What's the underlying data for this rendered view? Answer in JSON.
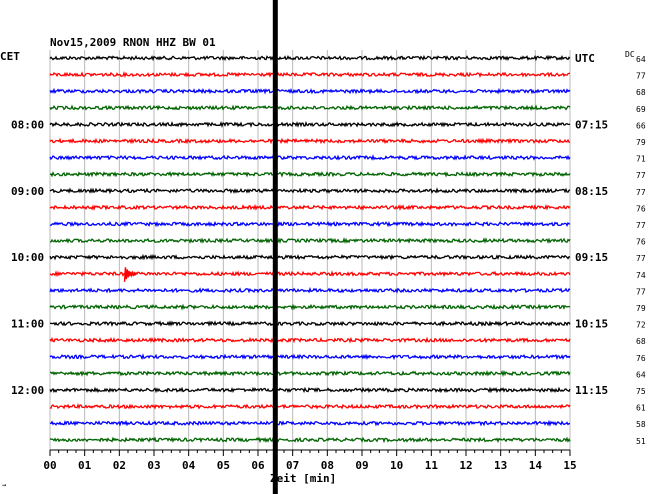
{
  "chart_data": {
    "type": "line",
    "header": "Nov15,2009   RNON HHZ BW 01",
    "left_label": "CET",
    "right_label": "UTC",
    "dc_label": "DC",
    "xlabel": "Zeit [min]",
    "x_ticks": [
      "00",
      "01",
      "02",
      "03",
      "04",
      "05",
      "06",
      "07",
      "08",
      "09",
      "10",
      "11",
      "12",
      "13",
      "14",
      "15"
    ],
    "xlim": [
      0,
      15
    ],
    "left_time_labels": [
      {
        "trace": 4,
        "text": "08:00"
      },
      {
        "trace": 8,
        "text": "09:00"
      },
      {
        "trace": 12,
        "text": "10:00"
      },
      {
        "trace": 16,
        "text": "11:00"
      },
      {
        "trace": 20,
        "text": "12:00"
      }
    ],
    "right_time_labels": [
      {
        "trace": 0,
        "text": "UTC"
      },
      {
        "trace": 4,
        "text": "07:15"
      },
      {
        "trace": 8,
        "text": "08:15"
      },
      {
        "trace": 12,
        "text": "09:15"
      },
      {
        "trace": 16,
        "text": "10:15"
      },
      {
        "trace": 20,
        "text": "11:15"
      }
    ],
    "dc_values": [
      "64",
      "77",
      "68",
      "69",
      "66",
      "79",
      "71",
      "77",
      "77",
      "76",
      "77",
      "76",
      "77",
      "74",
      "77",
      "79",
      "72",
      "68",
      "76",
      "64",
      "75",
      "61",
      "58",
      "51"
    ],
    "trace_colors": [
      "#000000",
      "#ff0000",
      "#0000ff",
      "#006400"
    ],
    "trace_count": 24,
    "event": {
      "trace": 13,
      "minute": 2.15,
      "label": ""
    },
    "marker_minute": 6.5,
    "grid": true,
    "corner_mark": "→"
  }
}
